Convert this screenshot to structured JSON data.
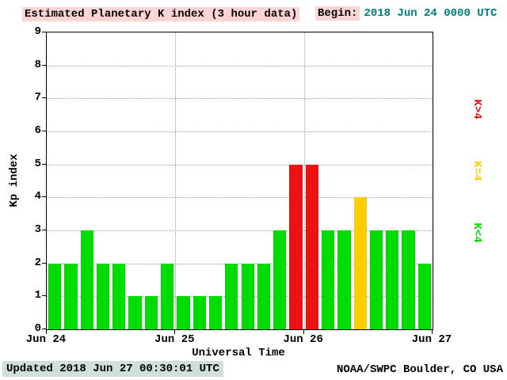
{
  "header": {
    "title": "Estimated Planetary K index (3 hour data)",
    "begin_label": "Begin:",
    "begin_value": "2018 Jun 24 0000 UTC"
  },
  "footer": {
    "updated": "Updated 2018 Jun 27 00:30:01 UTC",
    "source": "NOAA/SWPC Boulder, CO USA"
  },
  "chart_data": {
    "type": "bar",
    "title": "Estimated Planetary K index (3 hour data)",
    "xlabel": "Universal Time",
    "ylabel": "Kp index",
    "ylim": [
      0,
      9
    ],
    "y_ticks": [
      0,
      1,
      2,
      3,
      4,
      5,
      6,
      7,
      8,
      9
    ],
    "x_ticks": [
      "Jun 24",
      "Jun 25",
      "Jun 26",
      "Jun 27"
    ],
    "bin_hours": 3,
    "values": [
      2,
      2,
      3,
      2,
      2,
      1,
      1,
      2,
      1,
      1,
      1,
      2,
      2,
      2,
      3,
      5,
      5,
      3,
      3,
      4,
      3,
      3,
      3,
      2
    ],
    "colors": {
      "low": "#00dc00",
      "mid": "#ffcc00",
      "high": "#ee1111"
    },
    "legend": [
      {
        "label": "K>4",
        "color": "#ee1111"
      },
      {
        "label": "K=4",
        "color": "#ffcc00"
      },
      {
        "label": "K<4",
        "color": "#00dc00"
      }
    ],
    "grid": "dotted",
    "legend_position": "right"
  }
}
